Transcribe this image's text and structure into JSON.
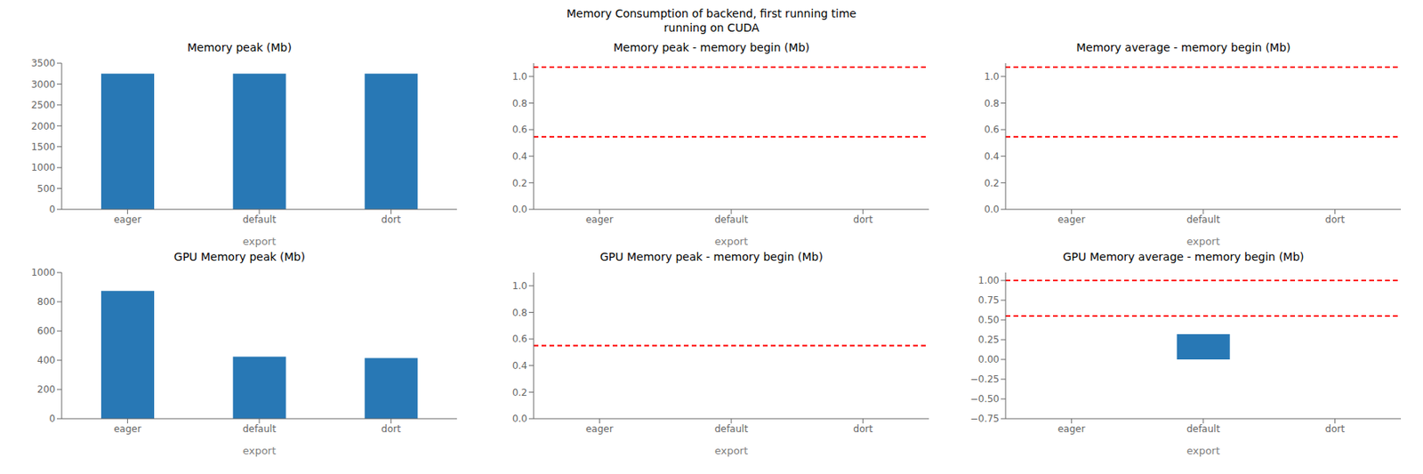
{
  "title": "Memory Consumption of backend, first running time\nrunning on CUDA",
  "chart_data": [
    {
      "type": "bar",
      "title": "Memory peak (Mb)",
      "xlabel": "export",
      "categories": [
        "eager",
        "default",
        "dort"
      ],
      "values": [
        3250,
        3250,
        3250
      ],
      "color": "#2878b5",
      "ylim": [
        0,
        3500
      ],
      "yticks": [
        0,
        500,
        1000,
        1500,
        2000,
        2500,
        3000,
        3500
      ],
      "grid": false
    },
    {
      "type": "hlines",
      "title": "Memory peak - memory begin (Mb)",
      "xlabel": "export",
      "categories": [
        "eager",
        "default",
        "dort"
      ],
      "hlines": [
        {
          "value": 1.07,
          "color": "red",
          "line_style": "dashed"
        },
        {
          "value": 0.545,
          "color": "red",
          "line_style": "dashed"
        }
      ],
      "ylim": [
        0.0,
        1.1
      ],
      "yticks": [
        {
          "value": 0,
          "label": "0.0"
        },
        0.2,
        0.4,
        0.6,
        0.8,
        {
          "value": 1,
          "label": "1.0"
        }
      ],
      "grid": false
    },
    {
      "type": "hlines",
      "title": "Memory average - memory begin (Mb)",
      "xlabel": "export",
      "categories": [
        "eager",
        "default",
        "dort"
      ],
      "hlines": [
        {
          "value": 1.07,
          "color": "red",
          "line_style": "dashed"
        },
        {
          "value": 0.545,
          "color": "red",
          "line_style": "dashed"
        }
      ],
      "ylim": [
        0.0,
        1.1
      ],
      "yticks": [
        {
          "value": 0,
          "label": "0.0"
        },
        0.2,
        0.4,
        0.6,
        0.8,
        {
          "value": 1,
          "label": "1.0"
        }
      ],
      "grid": false
    },
    {
      "type": "bar",
      "title": "GPU Memory peak (Mb)",
      "xlabel": "export",
      "categories": [
        "eager",
        "default",
        "dort"
      ],
      "values": [
        875,
        425,
        415
      ],
      "color": "#2878b5",
      "ylim": [
        0,
        1000
      ],
      "yticks": [
        0,
        200,
        400,
        600,
        800,
        1000
      ],
      "grid": false
    },
    {
      "type": "hlines",
      "title": "GPU Memory peak - memory begin (Mb)",
      "xlabel": "export",
      "categories": [
        "eager",
        "default",
        "dort"
      ],
      "hlines": [
        {
          "value": 0.55,
          "color": "red",
          "line_style": "dashed"
        }
      ],
      "ylim": [
        0.0,
        1.1
      ],
      "yticks": [
        {
          "value": 0,
          "label": "0.0"
        },
        0.2,
        0.4,
        0.6,
        0.8,
        {
          "value": 1,
          "label": "1.0"
        }
      ],
      "grid": false
    },
    {
      "type": "bar",
      "title": "GPU Memory average - memory begin (Mb)",
      "xlabel": "export",
      "categories": [
        "eager",
        "default",
        "dort"
      ],
      "values": [
        null,
        0.32,
        null
      ],
      "color": "#2878b5",
      "hlines": [
        {
          "value": 1.0,
          "color": "red",
          "line_style": "dashed"
        },
        {
          "value": 0.55,
          "color": "red",
          "line_style": "dashed"
        }
      ],
      "ylim": [
        -0.75,
        1.1
      ],
      "yticks": [
        {
          "value": -0.75,
          "label": "−0.75"
        },
        {
          "value": -0.5,
          "label": "−0.50"
        },
        {
          "value": -0.25,
          "label": "−0.25"
        },
        {
          "value": 0,
          "label": "0.00"
        },
        0.25,
        {
          "value": 0.5,
          "label": "0.50"
        },
        0.75,
        {
          "value": 1,
          "label": "1.00"
        }
      ],
      "grid": false
    }
  ]
}
